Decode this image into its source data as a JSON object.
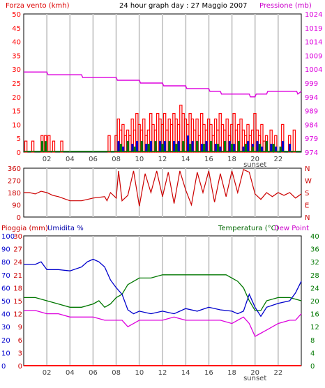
{
  "colors": {
    "red": "#ff0000",
    "magenta": "#dd00dd",
    "blue": "#0000cc",
    "green": "#007700",
    "darkred": "#cc0000",
    "grid": "#cccccc",
    "frame": "#000000",
    "dark": "#444444"
  },
  "header": {
    "left_title": "Forza vento (kmh)",
    "center_title": "24 hour graph day : 27 Maggio 2007",
    "right_title": "Pressione (mb)"
  },
  "bottom_header": {
    "rain_title": "Pioggia (mm)",
    "hum_title": "Umidita %",
    "temp_title": "Temperatura (°C)",
    "dew_title": "Dew Point"
  },
  "hour_labels": [
    "02",
    "04",
    "06",
    "08",
    "10",
    "12",
    "14",
    "16",
    "18",
    "20",
    "22"
  ],
  "sunset_label": "sunset",
  "chart_data": [
    {
      "type": "bar",
      "name": "wind",
      "x_axis": {
        "unit": "hour",
        "range": [
          0,
          24
        ],
        "ticks": [
          "02",
          "04",
          "06",
          "08",
          "10",
          "12",
          "14",
          "16",
          "18",
          "20",
          "22"
        ]
      },
      "y_left": {
        "label": "Forza vento (kmh)",
        "range": [
          0,
          50
        ],
        "ticks": [
          0,
          5,
          10,
          15,
          20,
          25,
          30,
          35,
          40,
          45,
          50
        ]
      },
      "y_right": {
        "label": "Pressione (mb)",
        "range": [
          974,
          1024
        ],
        "ticks": [
          974,
          979,
          984,
          989,
          994,
          999,
          1004,
          1009,
          1014,
          1019,
          1024
        ]
      },
      "pressure_series": {
        "x": [
          0,
          2,
          2.1,
          5,
          5.1,
          8,
          8.1,
          10,
          10.1,
          12,
          12.1,
          14,
          14.1,
          16,
          16.1,
          17,
          17.1,
          19.5,
          19.6,
          20,
          20.1,
          21,
          21.1,
          23.6,
          23.7,
          24
        ],
        "y": [
          1003,
          1003,
          1002,
          1002,
          1001,
          1001,
          1000,
          1000,
          999,
          999,
          998,
          998,
          997,
          997,
          996,
          996,
          995,
          995,
          994,
          994,
          995,
          995,
          996,
          996,
          995,
          996
        ]
      },
      "wind_gust": {
        "x": [
          0.2,
          0.8,
          1.6,
          1.9,
          2.2,
          2.6,
          3.3,
          7.4,
          8.0,
          8.2,
          8.4,
          8.6,
          8.8,
          9.0,
          9.2,
          9.4,
          9.6,
          9.8,
          10.0,
          10.2,
          10.4,
          10.6,
          10.8,
          11.0,
          11.2,
          11.4,
          11.6,
          11.8,
          12.0,
          12.2,
          12.4,
          12.6,
          12.8,
          13.0,
          13.2,
          13.4,
          13.6,
          13.8,
          14.0,
          14.2,
          14.4,
          14.6,
          14.8,
          15.0,
          15.2,
          15.4,
          15.6,
          15.8,
          16.0,
          16.2,
          16.4,
          16.6,
          16.8,
          17.0,
          17.2,
          17.4,
          17.6,
          17.8,
          18.0,
          18.2,
          18.4,
          18.6,
          18.8,
          19.0,
          19.2,
          19.4,
          19.6,
          19.8,
          20.0,
          20.2,
          20.4,
          20.6,
          20.8,
          21.0,
          21.4,
          21.8,
          22.4,
          23.0,
          23.4
        ],
        "y": [
          4,
          4,
          6,
          6,
          6,
          4,
          4,
          6,
          6,
          12,
          8,
          10,
          6,
          8,
          6,
          12,
          8,
          14,
          10,
          8,
          12,
          6,
          8,
          14,
          10,
          8,
          14,
          12,
          10,
          14,
          8,
          12,
          10,
          14,
          12,
          10,
          17,
          14,
          12,
          10,
          14,
          12,
          8,
          12,
          6,
          14,
          10,
          8,
          12,
          10,
          6,
          12,
          8,
          14,
          10,
          8,
          12,
          6,
          10,
          14,
          8,
          10,
          12,
          8,
          6,
          10,
          6,
          8,
          14,
          8,
          6,
          10,
          4,
          6,
          8,
          6,
          10,
          6,
          8
        ]
      },
      "wind_speed": {
        "x": [
          8.2,
          8.6,
          9.0,
          9.4,
          9.8,
          10.2,
          10.6,
          11.0,
          11.4,
          11.8,
          12.2,
          12.6,
          13.0,
          13.4,
          13.8,
          14.2,
          14.6,
          15.0,
          15.4,
          15.8,
          16.2,
          16.6,
          17.0,
          17.4,
          17.8,
          18.2,
          18.6,
          19.0,
          19.4,
          19.8,
          20.2,
          20.6,
          21.0,
          21.4,
          21.8,
          22.4,
          23.0
        ],
        "y": [
          4,
          2,
          4,
          3,
          4,
          4,
          3,
          4,
          2,
          4,
          4,
          3,
          4,
          4,
          3,
          6,
          4,
          4,
          3,
          4,
          4,
          3,
          2,
          4,
          4,
          3,
          4,
          2,
          4,
          3,
          4,
          2,
          4,
          3,
          2,
          4,
          3
        ]
      },
      "wind_dir_avg": {
        "x": [
          1.6,
          1.9,
          8.4,
          9.0,
          9.6,
          10.2,
          10.8,
          11.4,
          12.0,
          12.6,
          13.2,
          13.8,
          14.4,
          15.0,
          15.6,
          16.2,
          16.8,
          17.4,
          18.0,
          18.6,
          19.2,
          19.8,
          20.4,
          21.0,
          21.6,
          22.2
        ],
        "y": [
          4,
          4,
          3,
          4,
          2,
          4,
          3,
          4,
          3,
          4,
          3,
          4,
          3,
          4,
          3,
          4,
          3,
          4,
          3,
          4,
          3,
          2,
          3,
          4,
          3,
          2
        ]
      }
    },
    {
      "type": "line",
      "name": "wind_direction",
      "y_left": {
        "range": [
          0,
          360
        ],
        "ticks": [
          0,
          90,
          180,
          270,
          360
        ]
      },
      "y_right": {
        "ticks": [
          "N",
          "W",
          "S",
          "E",
          "N"
        ]
      },
      "series": {
        "x": [
          0,
          0.5,
          1,
          1.5,
          2,
          2.5,
          3,
          4,
          5,
          6,
          7,
          7.2,
          7.5,
          8,
          8.2,
          8.5,
          9,
          9.5,
          10,
          10.5,
          11,
          11.5,
          12,
          12.5,
          13,
          13.5,
          14,
          14.5,
          15,
          15.5,
          16,
          16.5,
          17,
          17.5,
          18,
          18.5,
          19,
          19.5,
          20,
          20.5,
          21,
          21.5,
          22,
          22.5,
          23,
          23.5,
          24
        ],
        "y": [
          180,
          180,
          170,
          190,
          180,
          160,
          150,
          120,
          120,
          140,
          150,
          120,
          180,
          140,
          340,
          120,
          160,
          340,
          80,
          320,
          180,
          340,
          150,
          330,
          100,
          340,
          200,
          90,
          330,
          180,
          340,
          110,
          320,
          150,
          340,
          180,
          350,
          330,
          170,
          130,
          180,
          150,
          180,
          160,
          180,
          140,
          170
        ]
      }
    },
    {
      "type": "line",
      "name": "weather",
      "y_left_rain": {
        "label": "Pioggia (mm)",
        "range": [
          0,
          30
        ],
        "ticks": [
          0,
          3,
          6,
          9,
          12,
          15,
          18,
          21,
          24,
          27,
          30
        ]
      },
      "y_left_hum": {
        "label": "Umidita %",
        "range": [
          0,
          100
        ],
        "ticks": [
          0,
          10,
          20,
          30,
          40,
          50,
          60,
          70,
          80,
          90,
          100
        ]
      },
      "y_right_temp": {
        "label": "Temperatura (°C)",
        "range": [
          0,
          40
        ],
        "ticks": [
          0,
          4,
          8,
          12,
          16,
          20,
          24,
          28,
          32,
          36,
          40
        ]
      },
      "humidity": {
        "x": [
          0,
          1,
          1.5,
          2,
          3,
          4,
          5,
          5.5,
          6,
          6.5,
          7,
          7.5,
          8,
          8.5,
          9,
          9.5,
          10,
          11,
          12,
          13,
          14,
          15,
          16,
          17,
          18,
          18.5,
          19,
          19.5,
          20,
          20.5,
          21,
          22,
          23,
          23.5,
          24
        ],
        "y": [
          78,
          78,
          80,
          74,
          74,
          73,
          76,
          80,
          82,
          80,
          76,
          66,
          60,
          55,
          43,
          40,
          42,
          40,
          42,
          40,
          44,
          42,
          45,
          43,
          42,
          40,
          42,
          55,
          45,
          38,
          45,
          48,
          50,
          56,
          65
        ]
      },
      "temperature": {
        "x": [
          0,
          1,
          2,
          3,
          4,
          5,
          6,
          6.5,
          7,
          7.5,
          8,
          8.5,
          9,
          10,
          11,
          12,
          13,
          14,
          15,
          16,
          17,
          17.5,
          18,
          18.5,
          19,
          19.5,
          20,
          20.5,
          21,
          22,
          23,
          24
        ],
        "y": [
          21,
          21,
          20,
          19,
          18,
          18,
          19,
          20,
          18,
          19,
          21,
          22,
          25,
          27,
          27,
          28,
          28,
          28,
          28,
          28,
          28,
          28,
          27,
          26,
          24,
          20,
          17,
          17,
          20,
          21,
          21,
          20
        ]
      },
      "dewpoint": {
        "x": [
          0,
          1,
          2,
          3,
          4,
          5,
          6,
          7,
          8,
          8.5,
          9,
          9.5,
          10,
          11,
          12,
          13,
          14,
          15,
          16,
          17,
          18,
          18.5,
          19,
          19.5,
          20,
          20.5,
          21,
          22,
          23,
          23.5,
          24
        ],
        "y": [
          17,
          17,
          16,
          16,
          15,
          15,
          15,
          14,
          14,
          14,
          12,
          13,
          14,
          14,
          14,
          15,
          14,
          14,
          14,
          14,
          13,
          14,
          15,
          13,
          9,
          10,
          11,
          13,
          14,
          14,
          16
        ]
      },
      "rain": {
        "x": [
          0,
          24
        ],
        "y": [
          0,
          0
        ]
      }
    }
  ]
}
